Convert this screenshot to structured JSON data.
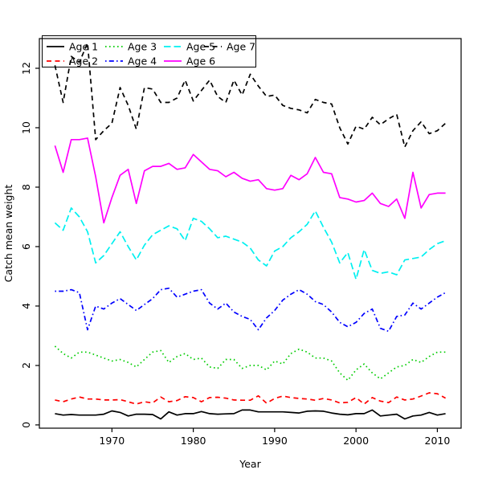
{
  "figure": {
    "xlabel": "Year",
    "ylabel": "Catch mean weight",
    "background_color": "#FFFFFF",
    "axis_color": "#000000"
  },
  "chart_data": {
    "type": "line",
    "title": "",
    "xlabel": "Year",
    "ylabel": "Catch mean weight",
    "x": [
      1963,
      1964,
      1965,
      1966,
      1967,
      1968,
      1969,
      1970,
      1971,
      1972,
      1973,
      1974,
      1975,
      1976,
      1977,
      1978,
      1979,
      1980,
      1981,
      1982,
      1983,
      1984,
      1985,
      1986,
      1987,
      1988,
      1989,
      1990,
      1991,
      1992,
      1993,
      1994,
      1995,
      1996,
      1997,
      1998,
      1999,
      2000,
      2001,
      2002,
      2003,
      2004,
      2005,
      2006,
      2007,
      2008,
      2009,
      2010,
      2011
    ],
    "xticks": [
      1970,
      1980,
      1990,
      2000,
      2010
    ],
    "yticks": [
      0,
      2,
      4,
      6,
      8,
      10,
      12
    ],
    "xlim": [
      1961.08,
      2012.92
    ],
    "ylim": [
      -0.11,
      13.0
    ],
    "grid": false,
    "legend_position": "top-left",
    "legend_columns": 4,
    "series": [
      {
        "name": "Age 1",
        "color": "#000000",
        "linestyle": "solid",
        "values": [
          0.38,
          0.33,
          0.35,
          0.33,
          0.33,
          0.33,
          0.36,
          0.47,
          0.42,
          0.3,
          0.36,
          0.36,
          0.35,
          0.2,
          0.44,
          0.33,
          0.38,
          0.38,
          0.45,
          0.38,
          0.36,
          0.37,
          0.38,
          0.5,
          0.5,
          0.44,
          0.44,
          0.44,
          0.44,
          0.42,
          0.4,
          0.46,
          0.47,
          0.46,
          0.4,
          0.36,
          0.34,
          0.38,
          0.38,
          0.5,
          0.3,
          0.33,
          0.36,
          0.2,
          0.3,
          0.33,
          0.42,
          0.33,
          0.38
        ]
      },
      {
        "name": "Age 2",
        "color": "#FF0000",
        "linestyle": "dashed",
        "values": [
          0.84,
          0.78,
          0.87,
          0.94,
          0.87,
          0.87,
          0.84,
          0.84,
          0.85,
          0.78,
          0.7,
          0.78,
          0.74,
          0.94,
          0.78,
          0.82,
          0.95,
          0.92,
          0.78,
          0.92,
          0.93,
          0.9,
          0.84,
          0.83,
          0.83,
          0.98,
          0.73,
          0.89,
          0.97,
          0.92,
          0.89,
          0.87,
          0.83,
          0.89,
          0.84,
          0.74,
          0.76,
          0.92,
          0.7,
          0.92,
          0.8,
          0.75,
          0.94,
          0.84,
          0.87,
          0.97,
          1.08,
          1.05,
          0.9
        ]
      },
      {
        "name": "Age 3",
        "color": "#00CC00",
        "linestyle": "dotted",
        "values": [
          2.65,
          2.4,
          2.25,
          2.45,
          2.45,
          2.35,
          2.25,
          2.15,
          2.2,
          2.1,
          1.95,
          2.2,
          2.45,
          2.5,
          2.1,
          2.3,
          2.4,
          2.2,
          2.25,
          1.95,
          1.9,
          2.2,
          2.2,
          1.9,
          2.0,
          2.0,
          1.85,
          2.15,
          2.05,
          2.4,
          2.55,
          2.45,
          2.25,
          2.25,
          2.15,
          1.75,
          1.5,
          1.85,
          2.05,
          1.75,
          1.55,
          1.75,
          1.95,
          2.0,
          2.2,
          2.1,
          2.3,
          2.45,
          2.45
        ]
      },
      {
        "name": "Age 4",
        "color": "#0000FF",
        "linestyle": "dashdot",
        "values": [
          4.5,
          4.5,
          4.55,
          4.45,
          3.2,
          4.0,
          3.9,
          4.1,
          4.25,
          4.05,
          3.85,
          4.05,
          4.25,
          4.55,
          4.6,
          4.3,
          4.4,
          4.5,
          4.55,
          4.1,
          3.9,
          4.1,
          3.8,
          3.65,
          3.55,
          3.2,
          3.6,
          3.85,
          4.2,
          4.4,
          4.55,
          4.4,
          4.15,
          4.05,
          3.8,
          3.45,
          3.3,
          3.45,
          3.75,
          3.9,
          3.25,
          3.15,
          3.65,
          3.7,
          4.1,
          3.9,
          4.1,
          4.3,
          4.45
        ]
      },
      {
        "name": "Age 5",
        "color": "#00F0F0",
        "linestyle": "longdash",
        "values": [
          6.8,
          6.55,
          7.3,
          7.0,
          6.5,
          5.45,
          5.7,
          6.1,
          6.5,
          6.0,
          5.55,
          6.05,
          6.4,
          6.55,
          6.7,
          6.6,
          6.2,
          6.95,
          6.85,
          6.6,
          6.3,
          6.35,
          6.25,
          6.15,
          5.95,
          5.55,
          5.35,
          5.85,
          6.0,
          6.3,
          6.5,
          6.75,
          7.2,
          6.65,
          6.15,
          5.45,
          5.8,
          4.9,
          5.9,
          5.2,
          5.1,
          5.15,
          5.05,
          5.55,
          5.6,
          5.65,
          5.9,
          6.1,
          6.2
        ]
      },
      {
        "name": "Age 6",
        "color": "#FF00FF",
        "linestyle": "solid",
        "values": [
          9.4,
          8.5,
          9.6,
          9.6,
          9.65,
          8.35,
          6.8,
          7.65,
          8.4,
          8.6,
          7.45,
          8.55,
          8.7,
          8.7,
          8.8,
          8.6,
          8.65,
          9.1,
          8.85,
          8.6,
          8.55,
          8.35,
          8.5,
          8.3,
          8.2,
          8.25,
          7.95,
          7.9,
          7.95,
          8.4,
          8.25,
          8.45,
          9.0,
          8.5,
          8.45,
          7.65,
          7.6,
          7.5,
          7.55,
          7.8,
          7.45,
          7.35,
          7.6,
          6.95,
          8.5,
          7.3,
          7.75,
          7.8,
          7.8
        ]
      },
      {
        "name": "Age 7",
        "color": "#000000",
        "linestyle": "dashed",
        "values": [
          12.1,
          10.85,
          12.4,
          12.2,
          12.85,
          9.6,
          9.9,
          10.15,
          11.35,
          10.75,
          9.95,
          11.35,
          11.3,
          10.85,
          10.85,
          11.0,
          11.6,
          10.9,
          11.25,
          11.6,
          11.05,
          10.85,
          11.6,
          11.1,
          11.8,
          11.4,
          11.05,
          11.1,
          10.75,
          10.65,
          10.6,
          10.5,
          10.95,
          10.85,
          10.8,
          10.0,
          9.45,
          10.05,
          9.95,
          10.35,
          10.1,
          10.3,
          10.45,
          9.35,
          9.9,
          10.2,
          9.8,
          9.9,
          10.15
        ]
      }
    ]
  }
}
